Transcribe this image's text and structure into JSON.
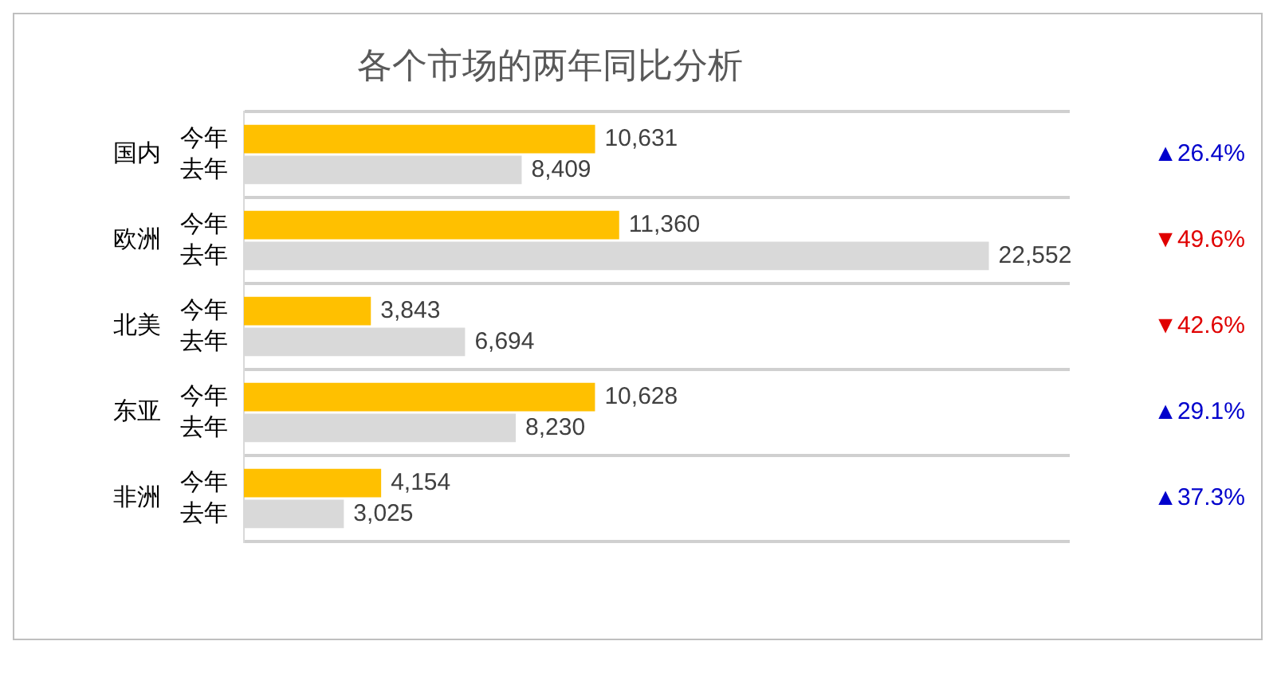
{
  "chart_data": {
    "type": "bar",
    "orientation": "horizontal",
    "title": "各个市场的两年同比分析",
    "categories": [
      "国内",
      "欧洲",
      "北美",
      "东亚",
      "非洲"
    ],
    "series": [
      {
        "name": "今年",
        "color": "#ffc000",
        "values": [
          10631,
          11360,
          3843,
          10628,
          4154
        ],
        "value_labels": [
          "10,631",
          "11,360",
          "3,843",
          "10,628",
          "4,154"
        ]
      },
      {
        "name": "去年",
        "color": "#d9d9d9",
        "values": [
          8409,
          22552,
          6694,
          8230,
          3025
        ],
        "value_labels": [
          "8,409",
          "22,552",
          "6,694",
          "8,230",
          "3,025"
        ]
      }
    ],
    "tick_labels": "y",
    "grid": "y",
    "legend": false,
    "annotations": [
      "▲26.4%",
      "▼49.6%",
      "▼42.6%",
      "▲29.1%",
      "▲37.3%"
    ]
  }
}
